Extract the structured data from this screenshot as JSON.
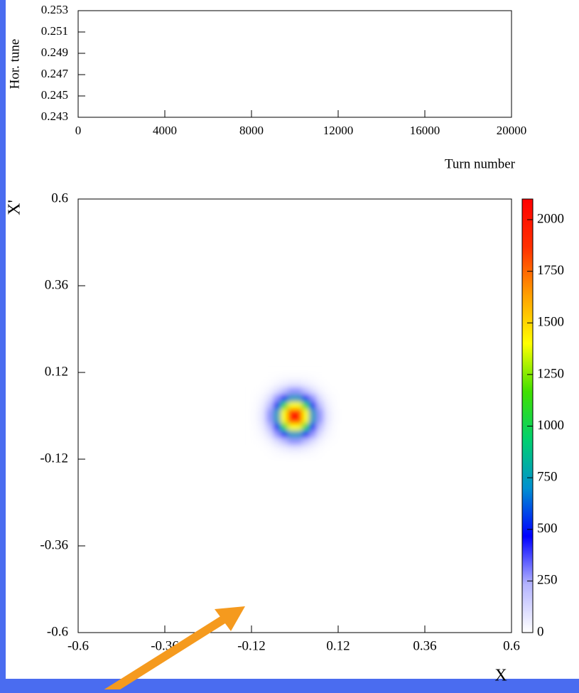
{
  "chart_data": [
    {
      "type": "line",
      "xlabel": "Turn number",
      "ylabel": "Hor. tune",
      "xlim": [
        0,
        20000
      ],
      "xticks": [
        0,
        4000,
        8000,
        12000,
        16000,
        20000
      ],
      "ylim": [
        0.243,
        0.253
      ],
      "yticks": [
        0.243,
        0.245,
        0.247,
        0.249,
        0.251,
        0.253
      ]
    },
    {
      "type": "heatmap",
      "xlabel": "X",
      "ylabel": "X'",
      "xlim": [
        -0.6,
        0.6
      ],
      "xticks": [
        -0.6,
        -0.36,
        -0.12,
        0.12,
        0.36,
        0.6
      ],
      "ylim": [
        -0.6,
        0.6
      ],
      "yticks": [
        -0.6,
        -0.36,
        -0.12,
        0.12,
        0.36,
        0.6
      ],
      "zlim": [
        0,
        2100
      ],
      "zticks": [
        0,
        250,
        500,
        750,
        1000,
        1250,
        1500,
        1750,
        2000
      ],
      "colormap": [
        "#ffffff",
        "#b4b4ff",
        "#0000ff",
        "#0090d0",
        "#00d070",
        "#40e000",
        "#ffff00",
        "#ffa000",
        "#ff3000",
        "#ff0000"
      ],
      "x_bins": [
        -0.12,
        -0.1,
        -0.08,
        -0.06,
        -0.04,
        -0.02,
        0,
        0.02,
        0.04,
        0.06,
        0.08,
        0.1,
        0.12
      ],
      "y_bins": [
        -0.12,
        -0.1,
        -0.08,
        -0.06,
        -0.04,
        -0.02,
        0,
        0.02,
        0.04,
        0.06,
        0.08,
        0.1,
        0.12
      ],
      "values": [
        [
          0,
          1,
          2,
          5,
          10,
          14,
          14,
          10,
          5,
          2,
          1,
          0
        ],
        [
          1,
          3,
          10,
          28,
          53,
          74,
          74,
          53,
          28,
          10,
          3,
          1
        ],
        [
          2,
          10,
          38,
          102,
          196,
          272,
          272,
          196,
          102,
          38,
          10,
          2
        ],
        [
          5,
          28,
          102,
          272,
          524,
          726,
          726,
          524,
          272,
          102,
          28,
          5
        ],
        [
          10,
          53,
          196,
          524,
          1008,
          1397,
          1397,
          1008,
          524,
          196,
          53,
          10
        ],
        [
          15,
          74,
          272,
          726,
          1397,
          1935,
          1935,
          1397,
          726,
          272,
          74,
          15
        ],
        [
          15,
          74,
          272,
          726,
          1397,
          1935,
          1935,
          1397,
          726,
          272,
          74,
          15
        ],
        [
          10,
          53,
          196,
          524,
          1008,
          1397,
          1397,
          1008,
          524,
          196,
          53,
          10
        ],
        [
          5,
          28,
          102,
          272,
          524,
          726,
          726,
          524,
          272,
          102,
          28,
          5
        ],
        [
          2,
          10,
          38,
          102,
          196,
          272,
          272,
          196,
          102,
          38,
          10,
          2
        ],
        [
          1,
          3,
          10,
          28,
          53,
          74,
          74,
          53,
          28,
          10,
          3,
          1
        ],
        [
          0,
          1,
          2,
          5,
          10,
          14,
          14,
          10,
          5,
          2,
          1,
          0
        ]
      ]
    }
  ]
}
